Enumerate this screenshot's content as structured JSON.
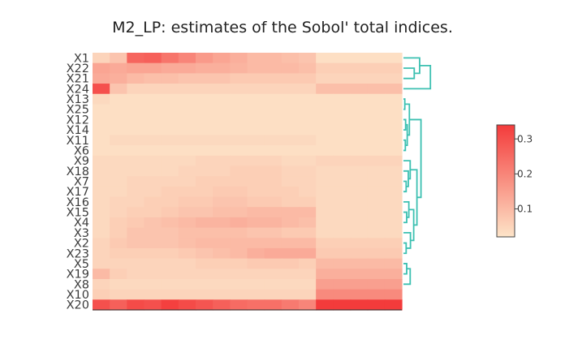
{
  "chart_data": {
    "type": "heatmap",
    "title": "M2_LP: estimates of the Sobol' total indices.",
    "row_labels": [
      "X1",
      "X22",
      "X21",
      "X24",
      "X13",
      "X25",
      "X12",
      "X14",
      "X11",
      "X6",
      "X9",
      "X18",
      "X7",
      "X17",
      "X16",
      "X15",
      "X4",
      "X3",
      "X2",
      "X23",
      "X5",
      "X19",
      "X8",
      "X10",
      "X20"
    ],
    "n_columns": 18,
    "values": [
      [
        0.05,
        0.08,
        0.26,
        0.27,
        0.23,
        0.2,
        0.16,
        0.14,
        0.12,
        0.1,
        0.1,
        0.09,
        0.08,
        0.03,
        0.03,
        0.03,
        0.03,
        0.03
      ],
      [
        0.14,
        0.13,
        0.14,
        0.14,
        0.13,
        0.13,
        0.12,
        0.12,
        0.11,
        0.1,
        0.1,
        0.1,
        0.09,
        0.06,
        0.06,
        0.06,
        0.06,
        0.06
      ],
      [
        0.13,
        0.12,
        0.1,
        0.09,
        0.09,
        0.08,
        0.08,
        0.08,
        0.07,
        0.07,
        0.07,
        0.07,
        0.07,
        0.05,
        0.05,
        0.05,
        0.05,
        0.05
      ],
      [
        0.3,
        0.08,
        0.05,
        0.05,
        0.05,
        0.05,
        0.05,
        0.05,
        0.05,
        0.05,
        0.05,
        0.05,
        0.05,
        0.09,
        0.09,
        0.09,
        0.09,
        0.09
      ],
      [
        0.04,
        0.03,
        0.03,
        0.03,
        0.03,
        0.03,
        0.03,
        0.03,
        0.03,
        0.03,
        0.03,
        0.03,
        0.03,
        0.03,
        0.03,
        0.03,
        0.03,
        0.03
      ],
      [
        0.03,
        0.03,
        0.03,
        0.03,
        0.03,
        0.03,
        0.03,
        0.03,
        0.03,
        0.03,
        0.03,
        0.03,
        0.03,
        0.03,
        0.03,
        0.03,
        0.03,
        0.03
      ],
      [
        0.03,
        0.03,
        0.03,
        0.03,
        0.03,
        0.03,
        0.03,
        0.03,
        0.03,
        0.03,
        0.03,
        0.03,
        0.03,
        0.03,
        0.03,
        0.03,
        0.03,
        0.03
      ],
      [
        0.03,
        0.03,
        0.03,
        0.03,
        0.03,
        0.03,
        0.03,
        0.03,
        0.03,
        0.03,
        0.03,
        0.03,
        0.03,
        0.03,
        0.03,
        0.03,
        0.03,
        0.03
      ],
      [
        0.03,
        0.04,
        0.04,
        0.04,
        0.04,
        0.04,
        0.04,
        0.04,
        0.04,
        0.04,
        0.04,
        0.04,
        0.04,
        0.03,
        0.03,
        0.03,
        0.03,
        0.03
      ],
      [
        0.03,
        0.03,
        0.03,
        0.03,
        0.03,
        0.03,
        0.03,
        0.03,
        0.03,
        0.03,
        0.03,
        0.03,
        0.03,
        0.03,
        0.03,
        0.03,
        0.03,
        0.03
      ],
      [
        0.04,
        0.04,
        0.04,
        0.04,
        0.04,
        0.04,
        0.05,
        0.05,
        0.05,
        0.05,
        0.05,
        0.04,
        0.04,
        0.05,
        0.05,
        0.05,
        0.05,
        0.05
      ],
      [
        0.04,
        0.04,
        0.04,
        0.04,
        0.04,
        0.05,
        0.05,
        0.05,
        0.06,
        0.06,
        0.06,
        0.05,
        0.05,
        0.04,
        0.04,
        0.04,
        0.04,
        0.04
      ],
      [
        0.04,
        0.04,
        0.05,
        0.05,
        0.05,
        0.05,
        0.06,
        0.06,
        0.06,
        0.06,
        0.06,
        0.05,
        0.05,
        0.04,
        0.04,
        0.04,
        0.04,
        0.04
      ],
      [
        0.04,
        0.04,
        0.05,
        0.05,
        0.06,
        0.06,
        0.06,
        0.07,
        0.07,
        0.06,
        0.06,
        0.06,
        0.05,
        0.04,
        0.04,
        0.04,
        0.04,
        0.04
      ],
      [
        0.04,
        0.05,
        0.05,
        0.06,
        0.06,
        0.07,
        0.07,
        0.08,
        0.08,
        0.07,
        0.07,
        0.06,
        0.06,
        0.04,
        0.04,
        0.04,
        0.04,
        0.04
      ],
      [
        0.04,
        0.05,
        0.06,
        0.06,
        0.07,
        0.08,
        0.08,
        0.09,
        0.09,
        0.1,
        0.1,
        0.1,
        0.1,
        0.04,
        0.04,
        0.04,
        0.04,
        0.04
      ],
      [
        0.04,
        0.06,
        0.07,
        0.08,
        0.09,
        0.1,
        0.11,
        0.11,
        0.12,
        0.11,
        0.11,
        0.1,
        0.09,
        0.04,
        0.04,
        0.04,
        0.04,
        0.04
      ],
      [
        0.04,
        0.06,
        0.08,
        0.08,
        0.08,
        0.09,
        0.09,
        0.09,
        0.09,
        0.08,
        0.08,
        0.07,
        0.07,
        0.04,
        0.04,
        0.04,
        0.04,
        0.04
      ],
      [
        0.05,
        0.07,
        0.08,
        0.08,
        0.08,
        0.09,
        0.1,
        0.1,
        0.1,
        0.1,
        0.1,
        0.1,
        0.1,
        0.06,
        0.06,
        0.06,
        0.06,
        0.06
      ],
      [
        0.05,
        0.06,
        0.06,
        0.06,
        0.06,
        0.07,
        0.08,
        0.09,
        0.1,
        0.12,
        0.13,
        0.13,
        0.13,
        0.07,
        0.07,
        0.07,
        0.07,
        0.07
      ],
      [
        0.05,
        0.05,
        0.05,
        0.05,
        0.05,
        0.05,
        0.06,
        0.06,
        0.06,
        0.07,
        0.07,
        0.07,
        0.06,
        0.1,
        0.1,
        0.1,
        0.1,
        0.1
      ],
      [
        0.1,
        0.06,
        0.05,
        0.05,
        0.05,
        0.05,
        0.05,
        0.05,
        0.05,
        0.05,
        0.05,
        0.05,
        0.05,
        0.12,
        0.12,
        0.12,
        0.12,
        0.12
      ],
      [
        0.05,
        0.04,
        0.04,
        0.04,
        0.04,
        0.04,
        0.04,
        0.04,
        0.04,
        0.04,
        0.04,
        0.04,
        0.04,
        0.15,
        0.15,
        0.15,
        0.15,
        0.15
      ],
      [
        0.06,
        0.05,
        0.05,
        0.05,
        0.05,
        0.05,
        0.05,
        0.05,
        0.05,
        0.05,
        0.05,
        0.05,
        0.05,
        0.19,
        0.19,
        0.19,
        0.19,
        0.19
      ],
      [
        0.3,
        0.27,
        0.31,
        0.3,
        0.33,
        0.31,
        0.29,
        0.27,
        0.25,
        0.24,
        0.24,
        0.22,
        0.2,
        0.34,
        0.34,
        0.34,
        0.34,
        0.34
      ]
    ],
    "zlim": [
      0.02,
      0.34
    ],
    "colorscale": [
      "#fde4c8",
      "#f43b3b"
    ],
    "colorbar": {
      "ticks": [
        0.1,
        0.2,
        0.3
      ],
      "tick_labels": [
        "0.1",
        "0.2",
        "0.3"
      ]
    },
    "dendrogram": {
      "side": "right",
      "cluster_color": "#3cc0b1",
      "root_color": "#e8868f",
      "links": [
        {
          "a": "X13",
          "b": "X25",
          "h": 0.5
        },
        {
          "a": "X12",
          "b": "X14",
          "h": 0.8
        },
        {
          "a": "X11",
          "b": "X6",
          "h": 0.7
        },
        {
          "a": "X12,X14",
          "b": "X11,X6",
          "h": 1.4
        },
        {
          "a": "X13,X25",
          "b": "X12,X14,X11,X6",
          "h": 2.2
        },
        {
          "a": "X7",
          "b": "X17",
          "h": 1.0
        },
        {
          "a": "X18",
          "b": "X7,X17",
          "h": 1.8
        },
        {
          "a": "X9",
          "b": "X18,X7,X17",
          "h": 2.5
        },
        {
          "a": "X15",
          "b": "X4",
          "h": 1.2
        },
        {
          "a": "X16",
          "b": "X15,X4",
          "h": 2.0
        },
        {
          "a": "X2",
          "b": "X23",
          "h": 1.0
        },
        {
          "a": "X3",
          "b": "X2,X23",
          "h": 2.6
        },
        {
          "a": "X16,X15,X4",
          "b": "X3,X2,X23",
          "h": 3.8
        },
        {
          "a": "X9,X18,X7,X17",
          "b": "X16,X15,X4,X3,X2,X23",
          "h": 5.0
        },
        {
          "a": "X13,X25,X12,X14,X11,X6",
          "b": "X9,X18,X7,X17,X16,X15,X4,X3,X2,X23",
          "h": 6.5
        },
        {
          "a": "X5",
          "b": "X19",
          "h": 1.2
        },
        {
          "a": "X8",
          "b": "X5,X19",
          "h": 2.5
        },
        {
          "a": "X13,X25,X12,X14,X11,X6,X9,X18,X7,X17,X16,X15,X4,X3,X2,X23",
          "b": "X5,X19,X8",
          "h": 9.0
        },
        {
          "a": "X13,X25,X12,X14,X11,X6,X9,X18,X7,X17,X16,X15,X4,X3,X2,X23,X5,X19,X8",
          "b": "X10",
          "h": 12.0
        },
        {
          "a": "X22",
          "b": "X21",
          "h": 4.0
        },
        {
          "a": "X1",
          "b": "X22,X21",
          "h": 6.0
        },
        {
          "a": "X1,X22,X21",
          "b": "X24",
          "h": 10.0
        },
        {
          "a": "X1,X22,X21,X24",
          "b": "X13,X25,X12,X14,X11,X6,X9,X18,X7,X17,X16,X15,X4,X3,X2,X23,X5,X19,X8,X10",
          "h": 28.0
        },
        {
          "a": "X1,X22,X21,X24,X13,X25,X12,X14,X11,X6,X9,X18,X7,X17,X16,X15,X4,X3,X2,X23,X5,X19,X8,X10",
          "b": "X20",
          "h": 28.0
        }
      ],
      "root_links": [
        "X1,X22,X21,X24,X13,X25,X12,X14,X11,X6,X9,X18,X7,X17,X16,X15,X4,X3,X2,X23,X5,X19,X8,X10|X20"
      ]
    }
  }
}
